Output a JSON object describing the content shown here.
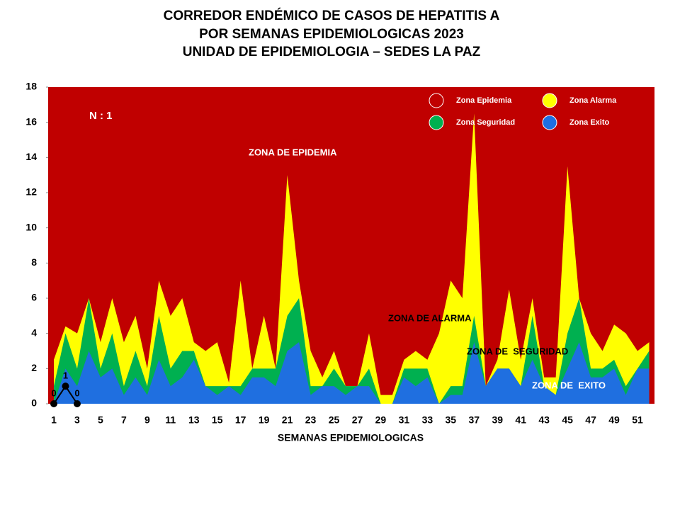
{
  "chart_data": {
    "type": "area",
    "title": [
      "CORREDOR ENDÉMICO DE CASOS DE HEPATITIS A",
      "POR SEMANAS EPIDEMIOLOGICAS 2023",
      "UNIDAD DE EPIDEMIOLOGIA – SEDES LA PAZ"
    ],
    "x_label": "SEMANAS EPIDEMIOLOGICAS",
    "categories": [
      1,
      null,
      3,
      null,
      5,
      null,
      7,
      null,
      9,
      null,
      11,
      null,
      13,
      null,
      15,
      null,
      17,
      null,
      19,
      null,
      21,
      null,
      23,
      null,
      25,
      null,
      27,
      null,
      29,
      null,
      31,
      null,
      33,
      null,
      35,
      null,
      37,
      null,
      39,
      null,
      41,
      null,
      43,
      null,
      45,
      null,
      47,
      null,
      49,
      null,
      51,
      null
    ],
    "epidemic_zone": {
      "name": "Zona Epidemia",
      "color": "#c00000"
    },
    "series": [
      {
        "name": "Zona Alarma",
        "color": "#ffff00",
        "values": [
          2.5,
          4.4,
          4,
          6,
          3.5,
          6,
          3.5,
          5,
          2,
          7,
          5,
          6,
          3.5,
          3,
          3.5,
          1.2,
          7,
          2,
          5,
          2,
          13,
          7,
          3,
          1.5,
          3,
          1,
          1,
          4,
          0.5,
          0.5,
          2.5,
          3,
          2.5,
          4,
          7,
          6,
          16.5,
          1,
          2.5,
          6.5,
          2.5,
          6,
          1.5,
          1.5,
          13.5,
          6,
          4,
          3,
          4.5,
          4,
          3,
          3.5
        ]
      },
      {
        "name": "Zona Seguridad",
        "color": "#00b050",
        "values": [
          1,
          4,
          2,
          6,
          2,
          4,
          1,
          3,
          1,
          5,
          2,
          3,
          3,
          1,
          1,
          1,
          1,
          2,
          2,
          2,
          5,
          6,
          1,
          1,
          2,
          1,
          1,
          2,
          0,
          0,
          2,
          2,
          2,
          0,
          1,
          1,
          5,
          1,
          2,
          2,
          1,
          5,
          1,
          0.5,
          4,
          6,
          2,
          2,
          2.5,
          1,
          2,
          3
        ]
      },
      {
        "name": "Zona Exito",
        "color": "#1f6fe0",
        "values": [
          0,
          2,
          1,
          3,
          1.5,
          2,
          0.5,
          1.5,
          0.5,
          2.5,
          1,
          1.5,
          2.5,
          1,
          0.5,
          1,
          0.5,
          1.5,
          1.5,
          1,
          3,
          3.5,
          0.5,
          1,
          1,
          0.5,
          1,
          1,
          0,
          0,
          1.5,
          1,
          1.5,
          0,
          0.5,
          0.5,
          3.5,
          1,
          2,
          2,
          1,
          2.5,
          1,
          0.5,
          2,
          3.5,
          1.5,
          1.5,
          2,
          0.5,
          2,
          2
        ]
      }
    ],
    "cases": {
      "color": "#000000",
      "values": [
        0,
        1,
        0,
        null,
        null,
        null,
        null,
        null,
        null,
        null,
        null,
        null,
        null,
        null,
        null,
        null,
        null,
        null,
        null,
        null,
        null,
        null,
        null,
        null,
        null,
        null,
        null,
        null,
        null,
        null,
        null,
        null,
        null,
        null,
        null,
        null,
        null,
        null,
        null,
        null,
        null,
        null,
        null,
        null,
        null,
        null,
        null,
        null,
        null,
        null,
        null,
        null
      ]
    },
    "annotations": [
      "N : 1",
      "ZONA DE EPIDEMIA",
      "ZONA DE ALARMA",
      "ZONA DE  SEGURIDAD",
      "ZONA DE  EXITO"
    ],
    "ylim": [
      0,
      18
    ],
    "yticks": [
      0,
      2,
      4,
      6,
      8,
      10,
      12,
      14,
      16,
      18
    ],
    "grid": false
  }
}
